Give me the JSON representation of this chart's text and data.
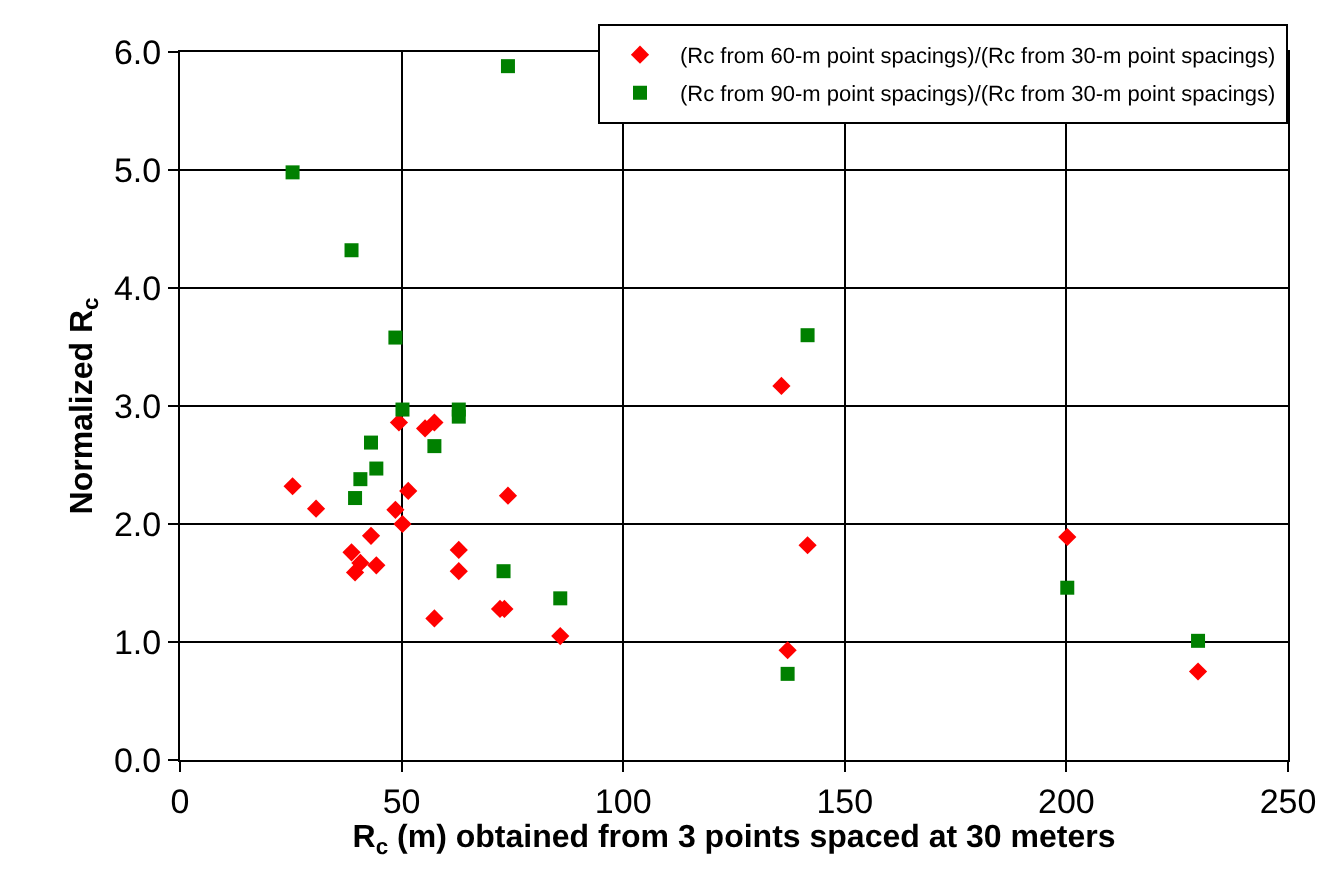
{
  "chart_data": {
    "type": "scatter",
    "xlabel": "R$_{c}$ (m) obtained from 3 points spaced at 30 meters",
    "ylabel": "Normalized R$_{c}$",
    "series": [
      {
        "name": "(Rc from 60-m point spacings)/(Rc from 30-m point spacings)",
        "color": "#ff0000",
        "marker": "diamond",
        "x": [
          25.4,
          30.7,
          38.7,
          39.5,
          40.7,
          43.1,
          44.3,
          48.6,
          49.4,
          50.2,
          51.5,
          55.3,
          57.4,
          57.4,
          62.9,
          62.9,
          72.2,
          73.2,
          74.0,
          85.8,
          135.7,
          137.1,
          141.6,
          200.2,
          229.7
        ],
        "values": [
          2.32,
          2.13,
          1.76,
          1.59,
          1.67,
          1.9,
          1.65,
          2.12,
          2.86,
          2.0,
          2.28,
          2.81,
          2.86,
          1.2,
          1.78,
          1.6,
          1.28,
          1.28,
          2.24,
          1.05,
          3.17,
          0.93,
          1.82,
          1.89,
          0.75
        ]
      },
      {
        "name": "(Rc from 90-m point spacings)/(Rc from 30-m point spacings)",
        "color": "#008000",
        "marker": "square",
        "x": [
          25.4,
          38.7,
          48.6,
          50.2,
          62.9,
          62.9,
          43.1,
          44.3,
          40.7,
          39.5,
          57.4,
          74.0,
          73.0,
          85.8,
          141.6,
          137.1,
          200.2,
          229.7
        ],
        "values": [
          4.98,
          4.32,
          3.58,
          2.97,
          2.97,
          2.91,
          2.69,
          2.47,
          2.38,
          2.22,
          2.66,
          5.88,
          1.6,
          1.37,
          3.6,
          0.73,
          1.46,
          1.01
        ]
      }
    ],
    "xlim": [
      0,
      250
    ],
    "xticks": [
      0,
      50,
      100,
      150,
      200,
      250
    ],
    "ylim": [
      0,
      6
    ],
    "yticks": [
      {
        "value": 0,
        "label": "0.0"
      },
      {
        "value": 1,
        "label": "1.0"
      },
      {
        "value": 2,
        "label": "2.0"
      },
      {
        "value": 3,
        "label": "3.0"
      },
      {
        "value": 4,
        "label": "4.0"
      },
      {
        "value": 5,
        "label": "5.0"
      },
      {
        "value": 6,
        "label": "6.0"
      }
    ],
    "grid": true,
    "legend": "top right"
  }
}
